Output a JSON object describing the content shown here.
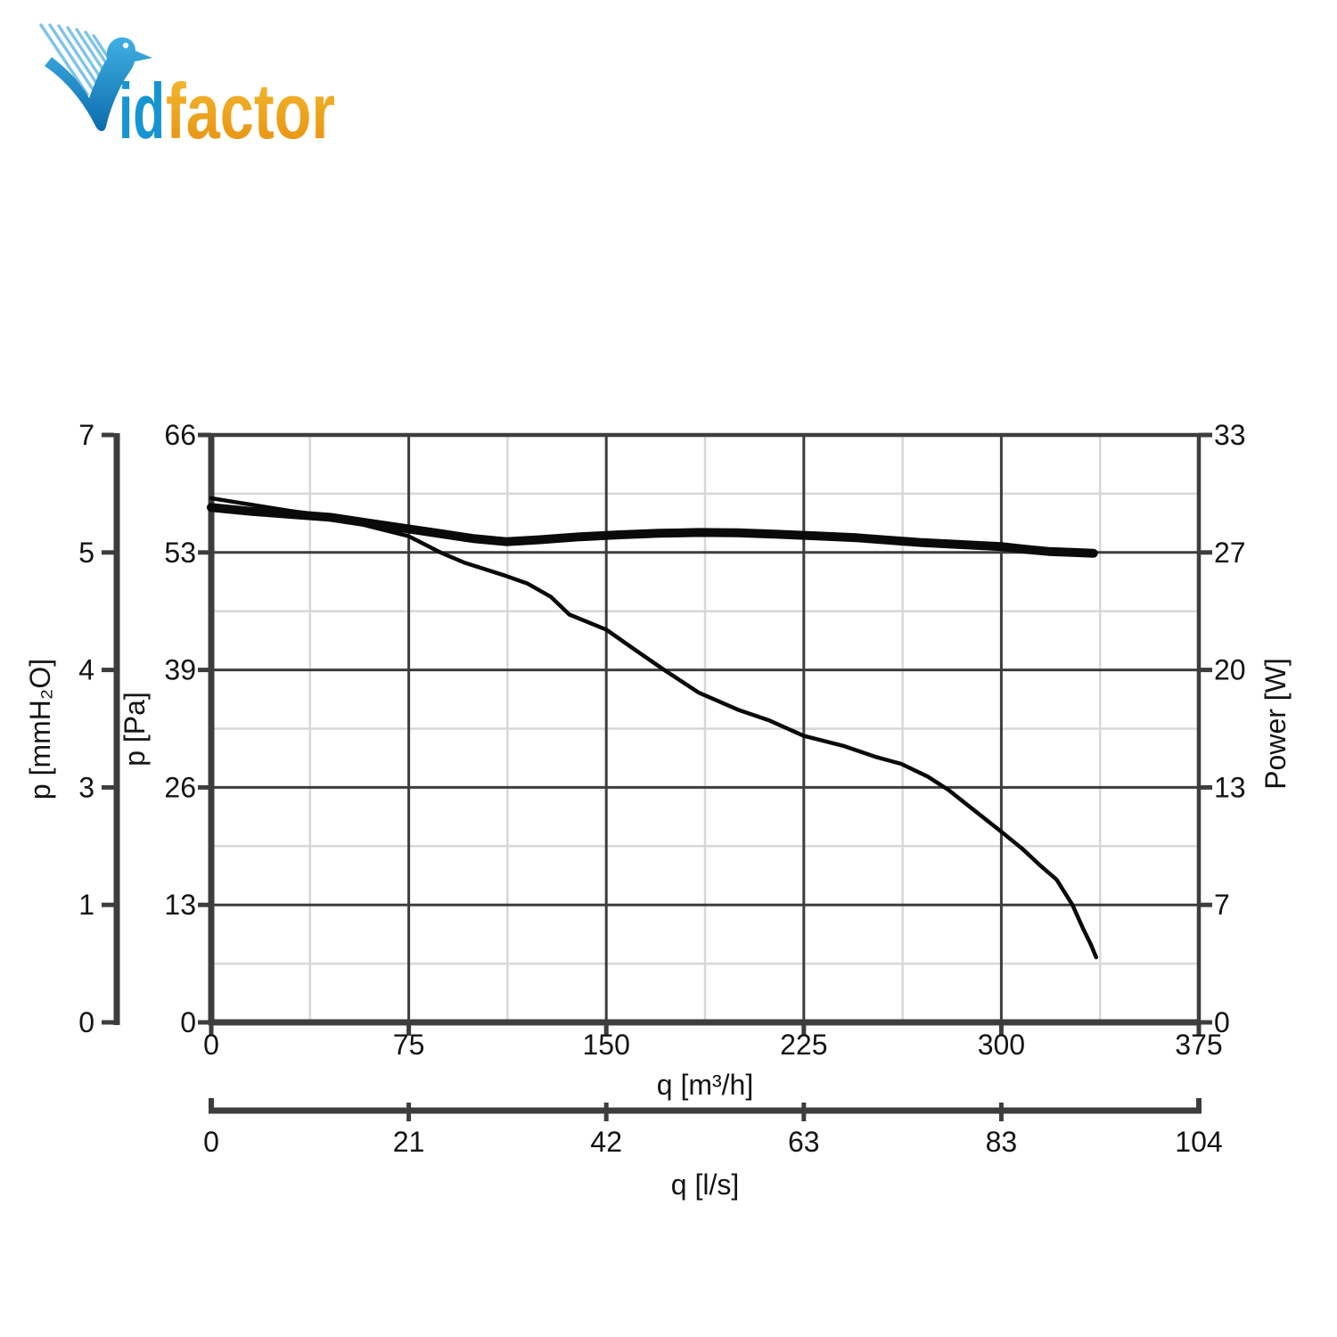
{
  "logo": {
    "text_blue": "id",
    "text_orange": "factor",
    "icon": "dove-check-icon",
    "colors": {
      "blue": "#1795d2",
      "blue_dark": "#0c6cad",
      "streak": "#7fc3e8",
      "orange_top": "#f3bc33",
      "orange_bottom": "#e78f0d"
    }
  },
  "chart_data": {
    "type": "line",
    "title": "",
    "grid": {
      "major_color": "#3d3d3d",
      "minor_color": "#d7d7d7",
      "minor_placement": "midpoints between majors"
    },
    "curve_color": "#0a0a0a",
    "axes": {
      "x_bottom": {
        "title": "q [m³/h]",
        "labels": [
          "0",
          "75",
          "150",
          "225",
          "300",
          "375"
        ],
        "values": [
          0,
          75,
          150,
          225,
          300,
          375
        ],
        "max": 375
      },
      "x_secondary": {
        "title": "q [l/s]",
        "labels": [
          "0",
          "21",
          "42",
          "63",
          "83",
          "104"
        ]
      },
      "y_mmh2o": {
        "title": "p [mmH₂O]",
        "labels": [
          "7",
          "5",
          "4",
          "3",
          "1",
          "0"
        ]
      },
      "y_pa": {
        "title": "p [Pa]",
        "labels": [
          "66",
          "53",
          "39",
          "26",
          "13",
          "0"
        ],
        "values": [
          66,
          53,
          39,
          26,
          13,
          0
        ]
      },
      "y_power": {
        "title": "Power [W]",
        "labels": [
          "33",
          "27",
          "20",
          "13",
          "7",
          "0"
        ],
        "values": [
          33,
          27,
          20,
          13,
          7,
          0
        ]
      }
    },
    "series": [
      {
        "name": "static-pressure-curve",
        "axis": "y_pa",
        "unit": "Pa",
        "style": "thin",
        "points": [
          [
            0,
            59.0
          ],
          [
            15,
            58.3
          ],
          [
            30,
            57.6
          ],
          [
            45,
            57.0
          ],
          [
            60,
            55.9
          ],
          [
            75,
            54.8
          ],
          [
            87,
            53.0
          ],
          [
            96,
            51.8
          ],
          [
            112,
            50.2
          ],
          [
            120,
            49.3
          ],
          [
            129,
            47.7
          ],
          [
            136,
            45.6
          ],
          [
            150,
            43.8
          ],
          [
            160,
            41.6
          ],
          [
            172,
            39.0
          ],
          [
            185,
            36.5
          ],
          [
            200,
            34.6
          ],
          [
            212,
            33.4
          ],
          [
            225,
            31.7
          ],
          [
            240,
            30.6
          ],
          [
            252,
            29.4
          ],
          [
            262,
            28.6
          ],
          [
            272,
            27.2
          ],
          [
            280,
            25.7
          ],
          [
            290,
            23.4
          ],
          [
            300,
            21.1
          ],
          [
            308,
            19.2
          ],
          [
            315,
            17.3
          ],
          [
            321,
            15.8
          ],
          [
            327,
            13.0
          ],
          [
            331,
            10.4
          ],
          [
            334,
            8.6
          ],
          [
            336,
            7.2
          ]
        ]
      },
      {
        "name": "power-input-curve",
        "axis": "y_power",
        "unit": "W",
        "style": "thick",
        "points": [
          [
            0,
            29.3
          ],
          [
            15,
            29.1
          ],
          [
            30,
            28.95
          ],
          [
            45,
            28.8
          ],
          [
            60,
            28.5
          ],
          [
            75,
            28.2
          ],
          [
            90,
            27.9
          ],
          [
            100,
            27.7
          ],
          [
            112,
            27.55
          ],
          [
            125,
            27.65
          ],
          [
            140,
            27.8
          ],
          [
            155,
            27.9
          ],
          [
            170,
            27.98
          ],
          [
            185,
            28.02
          ],
          [
            200,
            28.0
          ],
          [
            215,
            27.93
          ],
          [
            230,
            27.84
          ],
          [
            245,
            27.75
          ],
          [
            258,
            27.62
          ],
          [
            270,
            27.5
          ],
          [
            285,
            27.4
          ],
          [
            300,
            27.3
          ],
          [
            310,
            27.15
          ],
          [
            318,
            27.05
          ],
          [
            327,
            27.0
          ],
          [
            335,
            26.95
          ]
        ]
      }
    ]
  }
}
